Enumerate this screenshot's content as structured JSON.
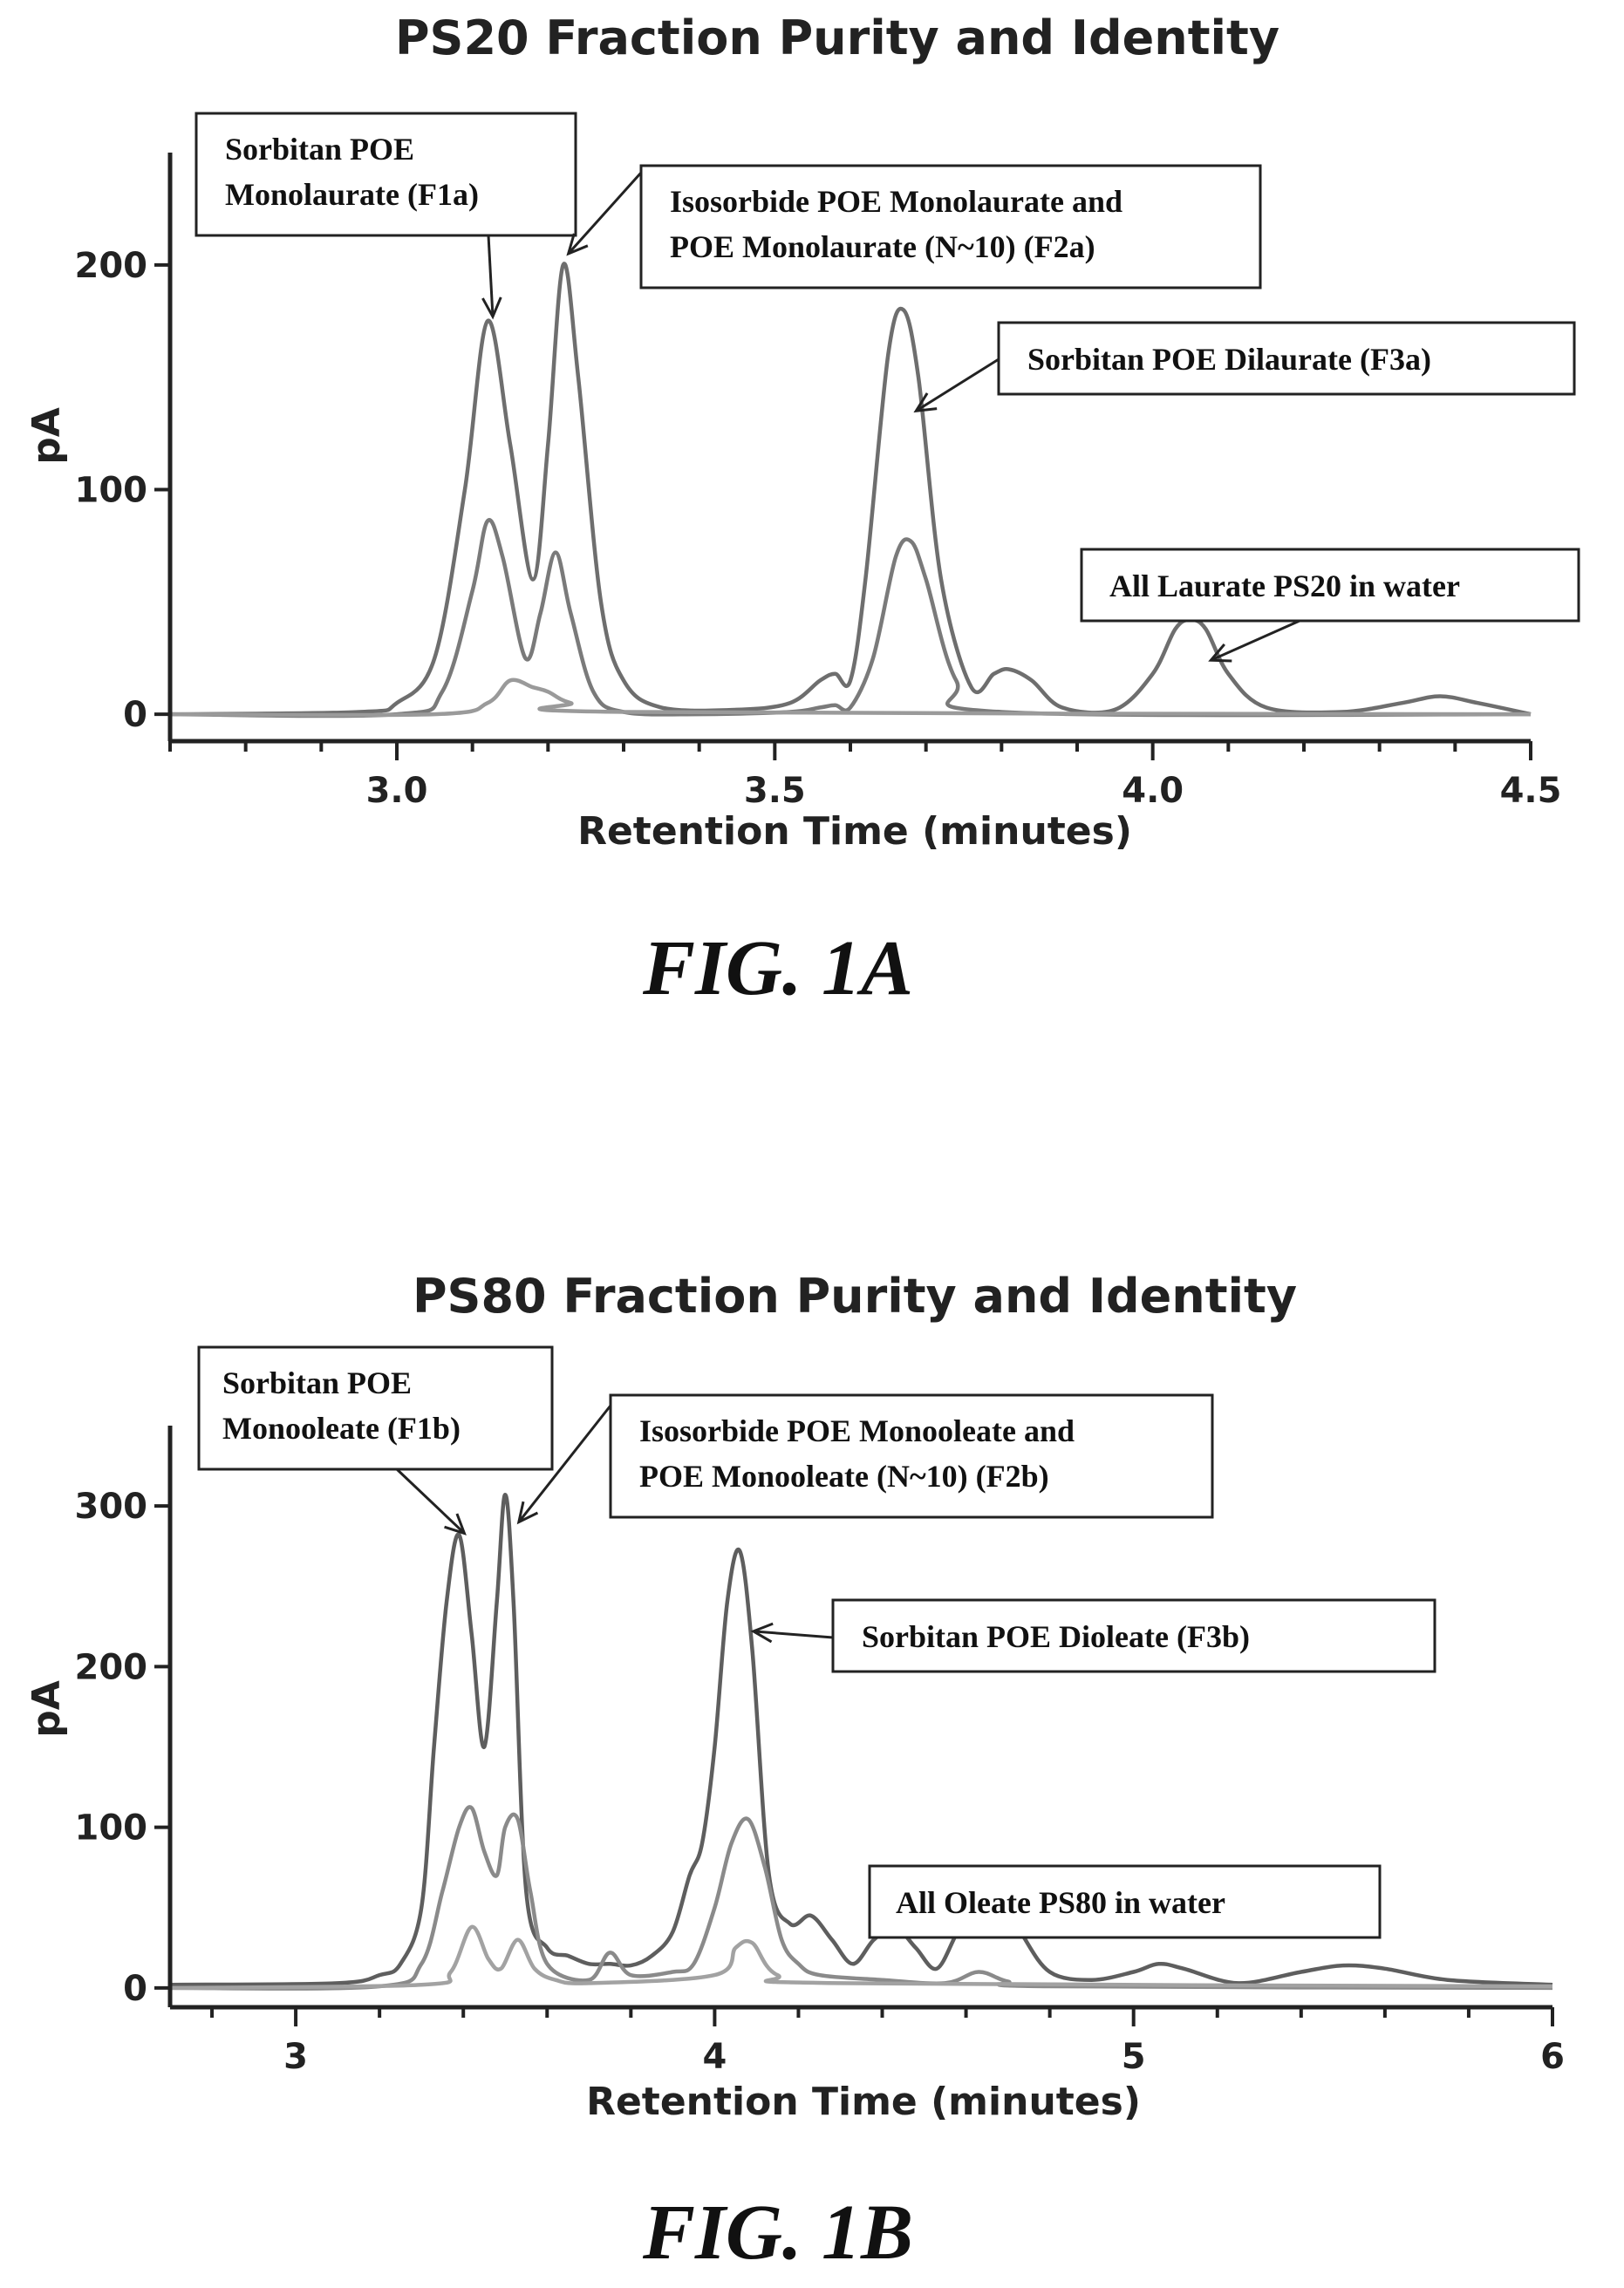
{
  "chart_data": [
    {
      "type": "line",
      "title": "PS20 Fraction Purity and Identity",
      "xlabel": "Retention Time (minutes)",
      "ylabel": "pA",
      "xlim": [
        2.7,
        4.5
      ],
      "ylim": [
        -12,
        250
      ],
      "xticks": [
        3.0,
        3.5,
        4.0,
        4.5
      ],
      "xtick_labels": [
        "3.0",
        "3.5",
        "4.0",
        "4.5"
      ],
      "xminor_step": 0.1,
      "yticks": [
        0,
        100,
        200
      ],
      "ytick_labels": [
        "0",
        "100",
        "200"
      ],
      "grid": false,
      "figure_label": "FIG. 1A",
      "series": [
        {
          "color": "#6e6e6e",
          "x": [
            2.7,
            2.95,
            3.0,
            3.05,
            3.09,
            3.12,
            3.15,
            3.18,
            3.2,
            3.22,
            3.24,
            3.27,
            3.3,
            3.35,
            3.45,
            3.52,
            3.56,
            3.58,
            3.6,
            3.62,
            3.65,
            3.67,
            3.69,
            3.72,
            3.76,
            3.79,
            3.81,
            3.84,
            3.88,
            3.95,
            4.0,
            4.03,
            4.05,
            4.07,
            4.1,
            4.15,
            4.25,
            4.33,
            4.38,
            4.43,
            4.5
          ],
          "y": [
            0,
            1,
            5,
            25,
            100,
            175,
            120,
            60,
            120,
            200,
            150,
            50,
            15,
            3,
            2,
            5,
            15,
            18,
            15,
            60,
            160,
            180,
            150,
            60,
            12,
            18,
            20,
            15,
            3,
            2,
            18,
            38,
            42,
            38,
            18,
            3,
            1,
            5,
            8,
            5,
            0
          ]
        },
        {
          "color": "#7a7a7a",
          "x": [
            2.7,
            3.0,
            3.06,
            3.1,
            3.12,
            3.14,
            3.17,
            3.19,
            3.21,
            3.23,
            3.26,
            3.3,
            3.4,
            3.52,
            3.56,
            3.58,
            3.6,
            3.63,
            3.66,
            3.68,
            3.7,
            3.74,
            3.8,
            4.5
          ],
          "y": [
            0,
            0,
            10,
            55,
            86,
            70,
            25,
            45,
            72,
            45,
            10,
            1,
            0,
            1,
            3,
            4,
            3,
            25,
            70,
            77,
            60,
            15,
            1,
            0
          ]
        },
        {
          "color": "#9a9a9a",
          "x": [
            2.7,
            3.05,
            3.12,
            3.15,
            3.18,
            3.2,
            3.23,
            3.3,
            4.5
          ],
          "y": [
            0,
            0,
            5,
            15,
            12,
            10,
            5,
            1,
            0
          ]
        }
      ],
      "annotations": [
        {
          "lines": [
            "Sorbitan POE",
            "Monolaurate (F1a)"
          ],
          "points_to": [
            3.12,
            177
          ]
        },
        {
          "lines": [
            "Isosorbide POE Monolaurate and",
            "POE Monolaurate (N~10) (F2a)"
          ],
          "points_to": [
            3.22,
            205
          ]
        },
        {
          "lines": [
            "Sorbitan POE Dilaurate (F3a)"
          ],
          "points_to": [
            3.68,
            135
          ]
        },
        {
          "lines": [
            "All Laurate PS20 in water"
          ],
          "points_to": [
            4.07,
            24
          ]
        }
      ]
    },
    {
      "type": "line",
      "title": "PS80 Fraction Purity and Identity",
      "xlabel": "Retention Time (minutes)",
      "ylabel": "pA",
      "xlim": [
        2.7,
        6.0
      ],
      "ylim": [
        -12,
        350
      ],
      "xticks": [
        3,
        4,
        5,
        6
      ],
      "xtick_labels": [
        "3",
        "4",
        "5",
        "6"
      ],
      "xminor_step": 0.2,
      "yticks": [
        0,
        100,
        200,
        300
      ],
      "ytick_labels": [
        "0",
        "100",
        "200",
        "300"
      ],
      "grid": false,
      "figure_label": "FIG. 1B",
      "series": [
        {
          "color": "#5e5e5e",
          "x": [
            2.7,
            3.1,
            3.2,
            3.25,
            3.3,
            3.33,
            3.36,
            3.39,
            3.42,
            3.45,
            3.48,
            3.5,
            3.52,
            3.55,
            3.6,
            3.65,
            3.7,
            3.75,
            3.8,
            3.85,
            3.9,
            3.94,
            3.97,
            4.0,
            4.03,
            4.06,
            4.09,
            4.13,
            4.18,
            4.23,
            4.28,
            4.33,
            4.38,
            4.43,
            4.48,
            4.53,
            4.58,
            4.63,
            4.68,
            4.73,
            4.8,
            4.9,
            5.0,
            5.06,
            5.12,
            5.25,
            5.4,
            5.5,
            5.6,
            5.75,
            6.0
          ],
          "y": [
            2,
            3,
            8,
            15,
            50,
            150,
            240,
            282,
            220,
            150,
            240,
            307,
            240,
            60,
            25,
            20,
            15,
            15,
            14,
            20,
            35,
            70,
            90,
            150,
            240,
            272,
            210,
            70,
            40,
            45,
            30,
            15,
            30,
            38,
            25,
            12,
            35,
            55,
            58,
            35,
            10,
            5,
            10,
            15,
            12,
            3,
            10,
            14,
            12,
            5,
            2
          ]
        },
        {
          "color": "#8a8a8a",
          "x": [
            2.7,
            3.2,
            3.3,
            3.35,
            3.39,
            3.42,
            3.45,
            3.48,
            3.5,
            3.53,
            3.56,
            3.6,
            3.7,
            3.75,
            3.8,
            3.9,
            3.95,
            4.0,
            4.04,
            4.08,
            4.12,
            4.16,
            4.2,
            4.25,
            4.4,
            4.55,
            4.63,
            4.7,
            4.8,
            6.0
          ],
          "y": [
            0,
            1,
            15,
            60,
            100,
            112,
            85,
            70,
            100,
            105,
            60,
            15,
            5,
            22,
            8,
            10,
            15,
            50,
            90,
            105,
            75,
            30,
            15,
            8,
            5,
            3,
            10,
            4,
            1,
            0
          ]
        },
        {
          "color": "#a2a2a2",
          "x": [
            2.7,
            3.3,
            3.37,
            3.42,
            3.46,
            3.49,
            3.53,
            3.57,
            3.62,
            3.7,
            4.0,
            4.05,
            4.09,
            4.15,
            4.3,
            6.0
          ],
          "y": [
            0,
            2,
            10,
            38,
            18,
            12,
            30,
            12,
            5,
            3,
            8,
            25,
            28,
            8,
            3,
            1
          ]
        }
      ],
      "annotations": [
        {
          "lines": [
            "Sorbitan POE",
            "Monooleate (F1b)"
          ],
          "points_to": [
            3.39,
            283
          ]
        },
        {
          "lines": [
            "Isosorbide POE Monooleate and",
            "POE Monooleate (N~10) (F2b)"
          ],
          "points_to": [
            3.52,
            290
          ]
        },
        {
          "lines": [
            "Sorbitan POE Dioleate (F3b)"
          ],
          "points_to": [
            4.08,
            222
          ]
        },
        {
          "lines": [
            "All Oleate PS80 in water"
          ],
          "points_to": [
            4.72,
            48
          ]
        }
      ]
    }
  ]
}
